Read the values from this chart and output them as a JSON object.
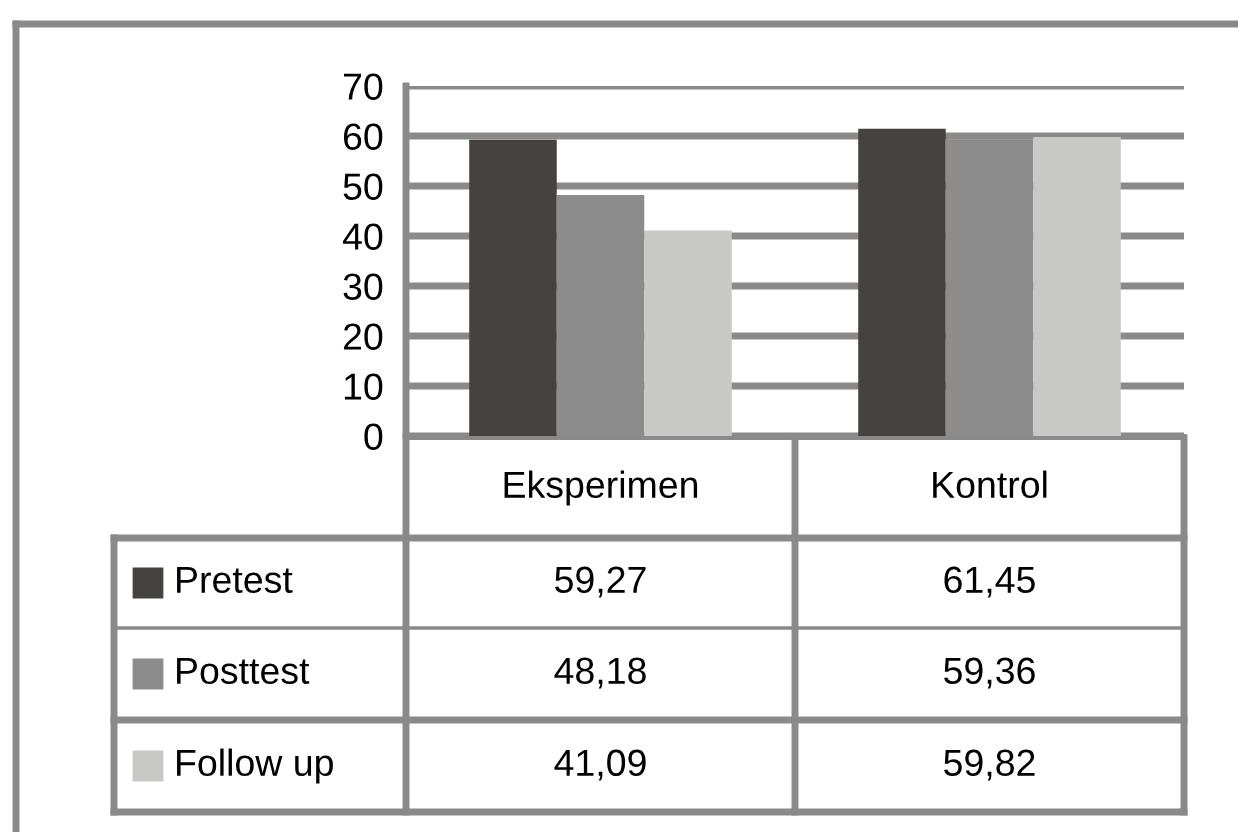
{
  "chart_data": {
    "type": "bar",
    "categories": [
      "Eksperimen",
      "Kontrol"
    ],
    "series": [
      {
        "name": "Pretest",
        "color": "#464240",
        "values": [
          59.27,
          61.45
        ],
        "value_labels": [
          "59,27",
          "61,45"
        ]
      },
      {
        "name": "Posttest",
        "color": "#8c8c8c",
        "values": [
          48.18,
          59.36
        ],
        "value_labels": [
          "48,18",
          "59,36"
        ]
      },
      {
        "name": "Follow up",
        "color": "#c8c8c6",
        "values": [
          41.09,
          59.82
        ],
        "value_labels": [
          "41,09",
          "59,82"
        ]
      }
    ],
    "ylim": [
      0,
      70
    ],
    "yticks": [
      0,
      10,
      20,
      30,
      40,
      50,
      60,
      70
    ],
    "grid": "y",
    "legend": "bottom left"
  }
}
